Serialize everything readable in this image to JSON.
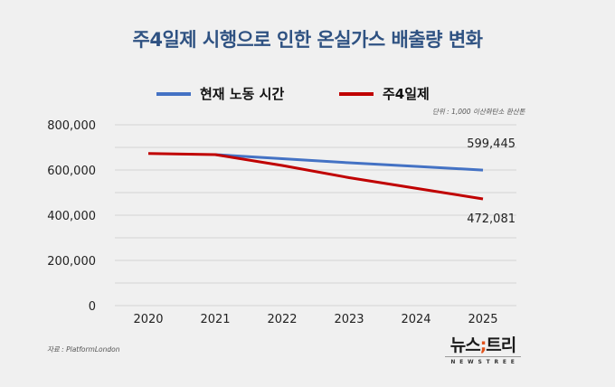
{
  "title": "주4일제 시행으로 인한 온실가스 배출량 변화",
  "unit_note": "단위 : 1,000 이산화탄소 환산톤",
  "source": "자료 : PlatformLondon",
  "logo": {
    "left": "뉴스",
    "separator": ";",
    "right": "트리",
    "subtitle": "NEWSTREE",
    "separator_color": "#e0521b"
  },
  "chart_data": {
    "type": "line",
    "title": "주4일제 시행으로 인한 온실가스 배출량 변화",
    "xlabel": "",
    "ylabel": "",
    "x": [
      "2020",
      "2021",
      "2022",
      "2023",
      "2024",
      "2025"
    ],
    "ylim": [
      0,
      800000
    ],
    "yticks": [
      0,
      200000,
      400000,
      600000,
      800000
    ],
    "ytick_labels": [
      "0",
      "200,000",
      "400,000",
      "600,000",
      "800,000"
    ],
    "grid_step": 100000,
    "grid": true,
    "legend_position": "top",
    "series": [
      {
        "name": "현재 노동 시간",
        "color": "#4472c4",
        "values": [
          null,
          668000,
          650000,
          632000,
          616000,
          599445
        ],
        "end_label": "599,445"
      },
      {
        "name": "주4일제",
        "color": "#c00000",
        "values": [
          673000,
          668000,
          620000,
          566000,
          519000,
          472081
        ],
        "end_label": "472,081"
      }
    ]
  }
}
